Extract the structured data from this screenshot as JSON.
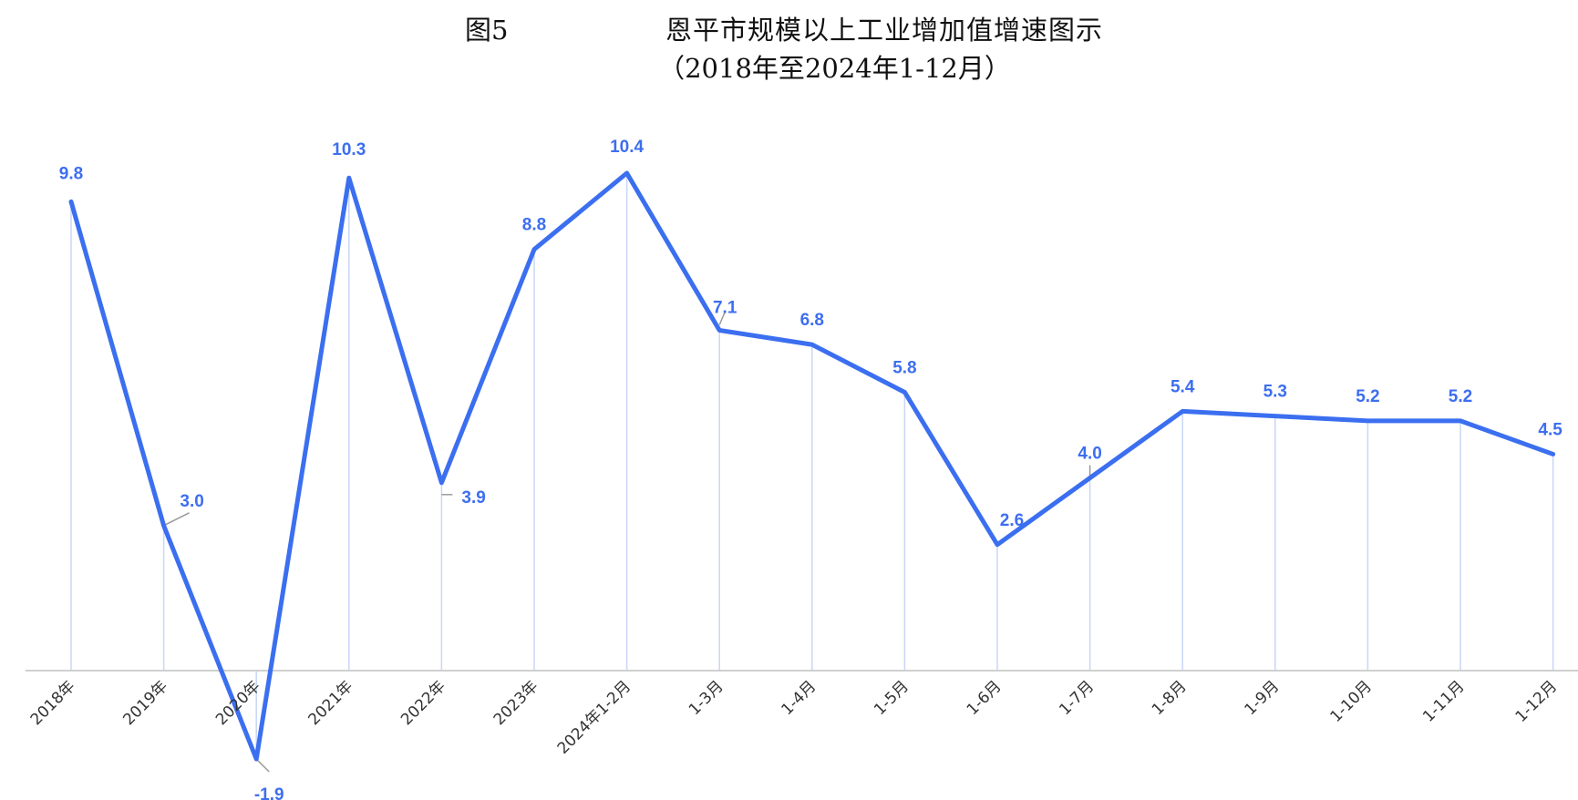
{
  "figure": {
    "number": "图5",
    "title": "恩平市规模以上工业增加值增速图示",
    "subtitle": "（2018年至2024年1-12月）"
  },
  "colors": {
    "line": "#3b6ff0",
    "drop_line": "#c8d6f7",
    "axis": "#d0d0d0",
    "label": "#3d6ef0",
    "leader": "#999999"
  },
  "chart_data": {
    "type": "line",
    "title": "恩平市规模以上工业增加值增速图示",
    "subtitle": "（2018年至2024年1-12月）",
    "categories": [
      "2018年",
      "2019年",
      "2020年",
      "2021年",
      "2022年",
      "2023年",
      "2024年1-2月",
      "1-3月",
      "1-4月",
      "1-5月",
      "1-6月",
      "1-7月",
      "1-8月",
      "1-9月",
      "1-10月",
      "1-11月",
      "1-12月"
    ],
    "series": [
      {
        "values": [
          9.8,
          3.0,
          -1.9,
          10.3,
          3.9,
          8.8,
          10.4,
          7.1,
          6.8,
          5.8,
          2.6,
          4.0,
          5.4,
          5.3,
          5.2,
          5.2,
          4.5
        ]
      }
    ],
    "data_labels": [
      "9.8",
      "3.0",
      "-1.9",
      "10.3",
      "3.9",
      "8.8",
      "10.4",
      "7.1",
      "6.8",
      "5.8",
      "2.6",
      "4.0",
      "5.4",
      "5.3",
      "5.2",
      "5.2",
      "4.5"
    ],
    "ylim": [
      -1.9,
      10.4
    ],
    "grid": false,
    "drop_lines": true,
    "legend": "none"
  }
}
